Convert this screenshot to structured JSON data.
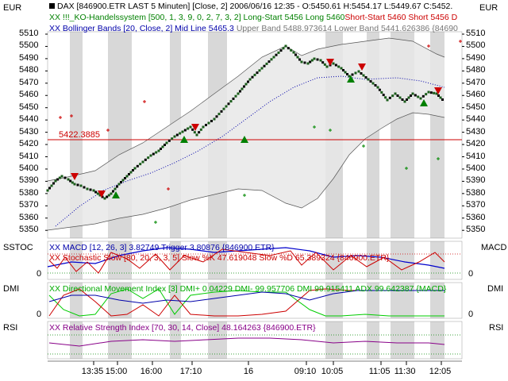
{
  "header": {
    "line1": "DAX [846900.ETR LAST 5 Minuten] [Close, 2] 2006/06/16 12:35 - O:5450.61 H:5454.17 L:5449.67 C:5452.",
    "line2a": "XX !!!_KO-Handelssystem [500, 1, 3, 9, 0, 2, 7, 3, 2] Long-Start 5456 Long 5460",
    "line2b": "Short-Start 5460 Short 5456 D",
    "line3a": "XX Bollinger Bands [20, Close, 2] Mid Line 5465.3",
    "line3b": " Upper Band 5488.973614 Lower Band 5441.626386 {84690"
  },
  "main_panel": {
    "unit_left": "EUR",
    "unit_right": "EUR",
    "y_labels": [
      "5510",
      "5500",
      "5490",
      "5480",
      "5470",
      "5460",
      "5450",
      "5440",
      "5430",
      "5420",
      "5410",
      "5400",
      "5390",
      "5380",
      "5370",
      "5360",
      "5350"
    ],
    "hline_label": "5422.3885"
  },
  "sstoc_panel": {
    "left_label": "SSTOC",
    "right_label": "MACD",
    "zero_left": "0",
    "zero_right": "0",
    "legend1": "XX MACD [12, 26, 3] 3.82749 Trigger 3.80876 {846900.ETR}",
    "legend2": "XX Stochastic Slow [80, 20, 3, 3, 5] Slow %K 47.619048 Slow %D 65.389324 {846900.ETR}"
  },
  "dmi_panel": {
    "left_label": "DMI",
    "right_label": "DMI",
    "zero_left": "0",
    "zero_right": "0",
    "legend": "XX Directional Movement Index [3] DMI+ 0.04229 DMI- 99.957706 DMI 99.915411 ADX 99.642387 {MACD}"
  },
  "rsi_panel": {
    "left_label": "RSI",
    "right_label": "RSI",
    "legend": "XX Relative Strength Index [70, 30, 14, Close] 48.164263 {846900.ETR}"
  },
  "time_axis": [
    "13:35",
    "15:00",
    "16:00",
    "17:10",
    "16",
    "09:10",
    "10:05",
    "11:05",
    "11:30",
    "12:05"
  ],
  "colors": {
    "price_up": "#000000",
    "signal_long": "#008000",
    "signal_short": "#cc0000",
    "bollinger": "#0000aa",
    "band_fill": "#e8e8e8",
    "stripe": "#d8d8d8"
  }
}
